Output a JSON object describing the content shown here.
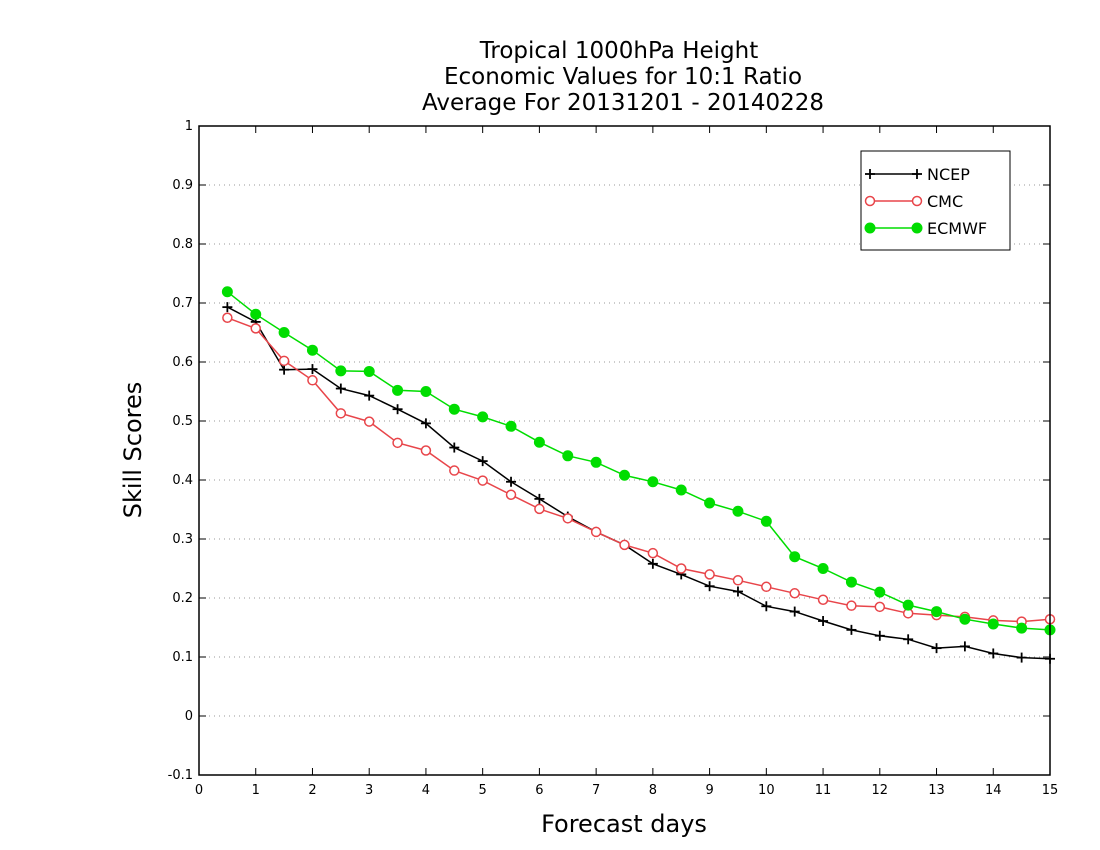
{
  "chart_data": {
    "type": "line",
    "title_lines": [
      "Tropical 1000hPa Height",
      "Economic Values for 10:1 Ratio",
      "Average For 20131201 - 20140228"
    ],
    "xlabel": "Forecast days",
    "ylabel": "Skill Scores",
    "xlim": [
      0,
      15
    ],
    "ylim": [
      -0.1,
      1
    ],
    "xticks": [
      0,
      1,
      2,
      3,
      4,
      5,
      6,
      7,
      8,
      9,
      10,
      11,
      12,
      13,
      14,
      15
    ],
    "yticks": [
      -0.1,
      0,
      0.1,
      0.2,
      0.3,
      0.4,
      0.5,
      0.6,
      0.7,
      0.8,
      0.9,
      1
    ],
    "ytick_labels": [
      "-0.1",
      "0",
      "0.1",
      "0.2",
      "0.3",
      "0.4",
      "0.5",
      "0.6",
      "0.7",
      "0.8",
      "0.9",
      "1"
    ],
    "grid": "horizontal dotted",
    "legend_position": "top-right",
    "x": [
      0.5,
      1,
      1.5,
      2,
      2.5,
      3,
      3.5,
      4,
      4.5,
      5,
      5.5,
      6,
      6.5,
      7,
      7.5,
      8,
      8.5,
      9,
      9.5,
      10,
      10.5,
      11,
      11.5,
      12,
      12.5,
      13,
      13.5,
      14,
      14.5,
      15
    ],
    "series": [
      {
        "name": "NCEP",
        "color": "#000000",
        "marker": "plus",
        "values": [
          0.693,
          0.668,
          0.587,
          0.588,
          0.555,
          0.543,
          0.52,
          0.496,
          0.455,
          0.432,
          0.397,
          0.368,
          0.338,
          0.312,
          0.29,
          0.258,
          0.24,
          0.22,
          0.211,
          0.186,
          0.177,
          0.161,
          0.146,
          0.136,
          0.13,
          0.115,
          0.118,
          0.106,
          0.099,
          0.097
        ]
      },
      {
        "name": "CMC",
        "color": "#e8454a",
        "marker": "open-circle",
        "values": [
          0.675,
          0.657,
          0.602,
          0.569,
          0.513,
          0.499,
          0.463,
          0.45,
          0.416,
          0.399,
          0.375,
          0.351,
          0.335,
          0.312,
          0.29,
          0.276,
          0.25,
          0.24,
          0.23,
          0.219,
          0.208,
          0.197,
          0.187,
          0.185,
          0.174,
          0.171,
          0.168,
          0.162,
          0.16,
          0.164
        ]
      },
      {
        "name": "ECMWF",
        "color": "#00dd00",
        "marker": "filled-circle",
        "values": [
          0.719,
          0.681,
          0.65,
          0.62,
          0.585,
          0.584,
          0.552,
          0.55,
          0.52,
          0.507,
          0.491,
          0.464,
          0.441,
          0.43,
          0.408,
          0.397,
          0.383,
          0.361,
          0.347,
          0.33,
          0.27,
          0.25,
          0.227,
          0.21,
          0.188,
          0.177,
          0.164,
          0.156,
          0.149,
          0.146
        ]
      }
    ]
  }
}
